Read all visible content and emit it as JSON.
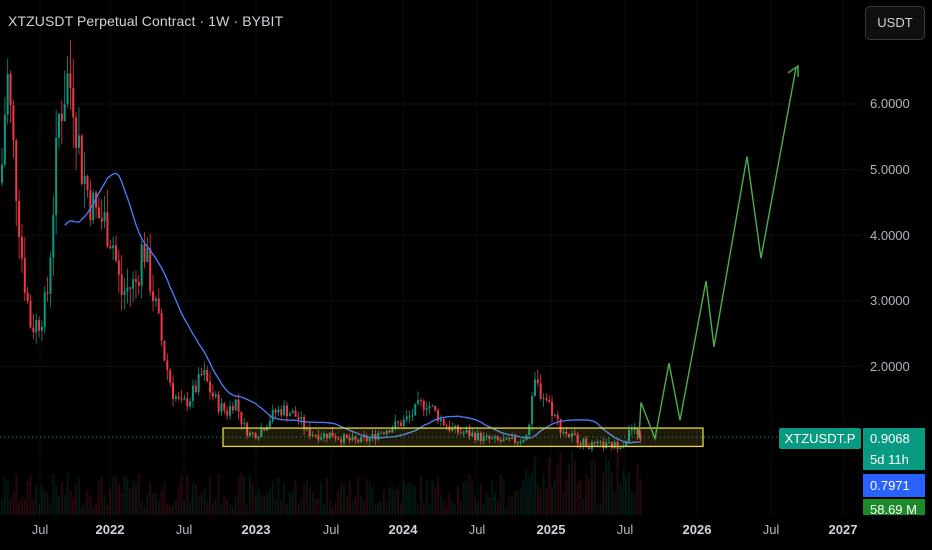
{
  "header": {
    "title": "XTZUSDT Perpetual Contract · 1W · BYBIT",
    "currency_button": "USDT"
  },
  "y_axis": {
    "labels": [
      "6.0000",
      "5.0000",
      "4.0000",
      "3.0000",
      "2.0000"
    ]
  },
  "x_axis": {
    "labels": [
      {
        "text": "Jul",
        "bold": false
      },
      {
        "text": "2022",
        "bold": true
      },
      {
        "text": "Jul",
        "bold": false
      },
      {
        "text": "2023",
        "bold": true
      },
      {
        "text": "Jul",
        "bold": false
      },
      {
        "text": "2024",
        "bold": true
      },
      {
        "text": "Jul",
        "bold": false
      },
      {
        "text": "2025",
        "bold": true
      },
      {
        "text": "Jul",
        "bold": false
      },
      {
        "text": "2026",
        "bold": true
      },
      {
        "text": "Jul",
        "bold": false
      },
      {
        "text": "2027",
        "bold": true
      }
    ]
  },
  "price_scale": {
    "symbol_label": "XTZUSDT.P",
    "last_price": "0.9068",
    "countdown": "5d 11h",
    "ma_value": "0.7971",
    "volume_value": "58.69 M"
  },
  "colors": {
    "up": "#089981",
    "down": "#f23645",
    "ma_line": "#2962ff",
    "projection": "#4caf50",
    "support_box": "#e6d83c"
  },
  "drawings": {
    "support_zone": {
      "low": 0.78,
      "high": 1.06
    },
    "projection_path": [
      0.9068,
      1.45,
      0.9,
      2.05,
      1.18,
      3.3,
      2.3,
      5.2,
      3.65,
      6.55
    ]
  }
}
